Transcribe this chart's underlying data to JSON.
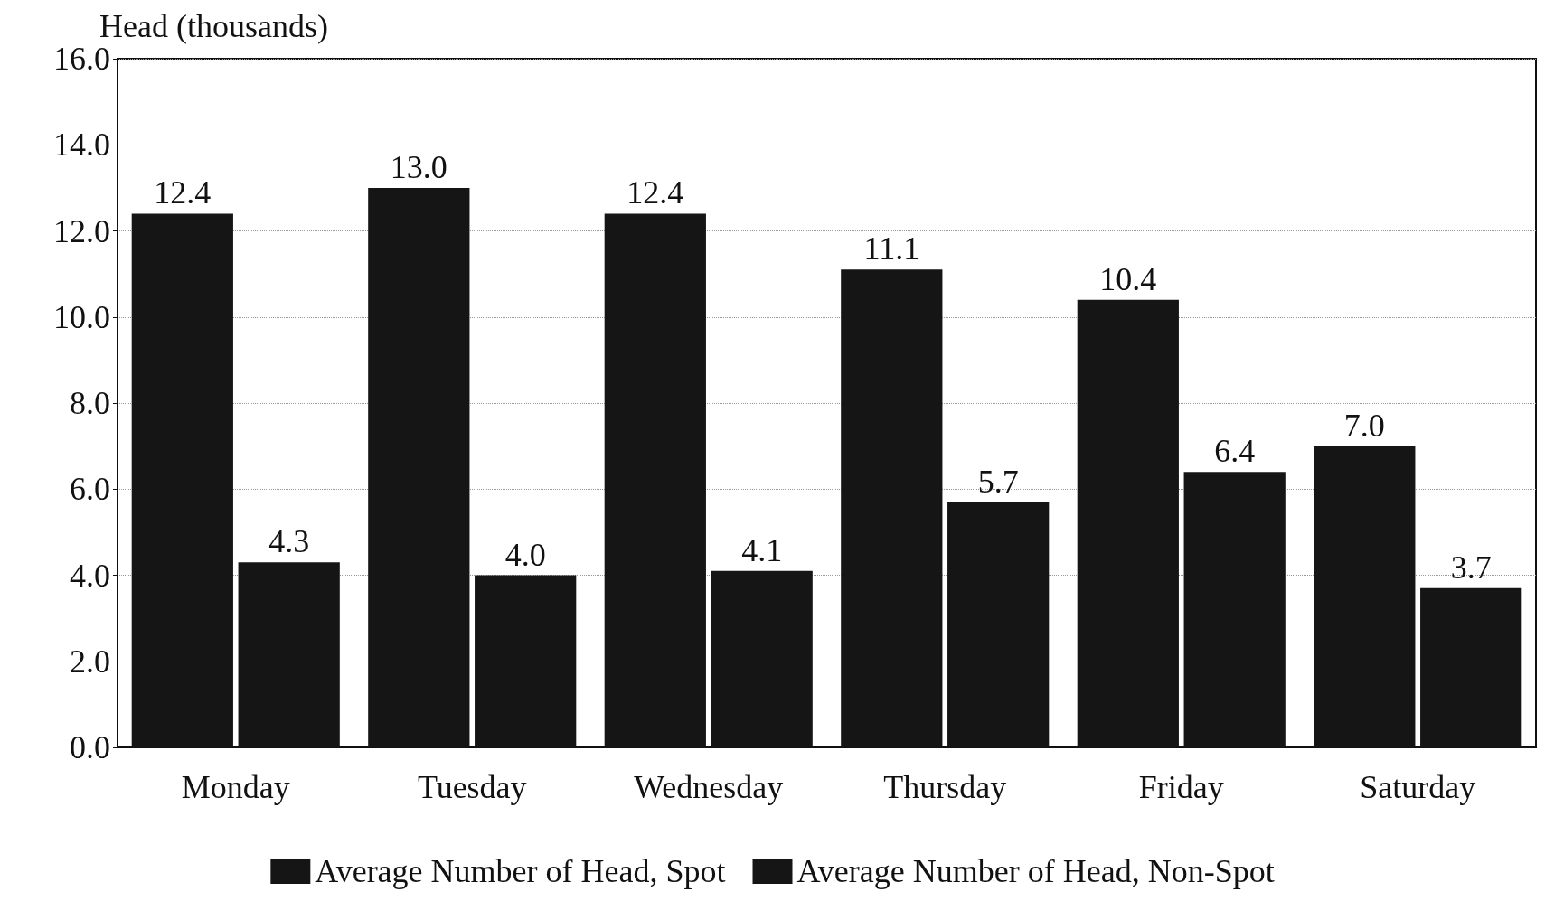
{
  "chart_data": {
    "type": "bar",
    "ylabel": "Head (thousands)",
    "categories": [
      "Monday",
      "Tuesday",
      "Wednesday",
      "Thursday",
      "Friday",
      "Saturday"
    ],
    "series": [
      {
        "name": "Average Number of Head, Spot",
        "color": "#151515",
        "values": [
          12.4,
          13.0,
          12.4,
          11.1,
          10.4,
          7.0
        ],
        "value_labels": [
          "12.4",
          "13.0",
          "12.4",
          "11.1",
          "10.4",
          "7.0"
        ]
      },
      {
        "name": "Average Number of Head, Non-Spot",
        "color": "#151515",
        "values": [
          4.3,
          4.0,
          4.1,
          5.7,
          6.4,
          3.7
        ],
        "value_labels": [
          "4.3",
          "4.0",
          "4.1",
          "5.7",
          "6.4",
          "3.7"
        ]
      }
    ],
    "ylim": [
      0,
      16
    ],
    "yticks": [
      {
        "value": 0,
        "label": "0.0"
      },
      {
        "value": 2,
        "label": "2.0"
      },
      {
        "value": 4,
        "label": "4.0"
      },
      {
        "value": 6,
        "label": "6.0"
      },
      {
        "value": 8,
        "label": "8.0"
      },
      {
        "value": 10,
        "label": "10.0"
      },
      {
        "value": 12,
        "label": "12.0"
      },
      {
        "value": 14,
        "label": "14.0"
      },
      {
        "value": 16,
        "label": "16.0"
      }
    ],
    "grid": "y",
    "legend": "bottom"
  }
}
